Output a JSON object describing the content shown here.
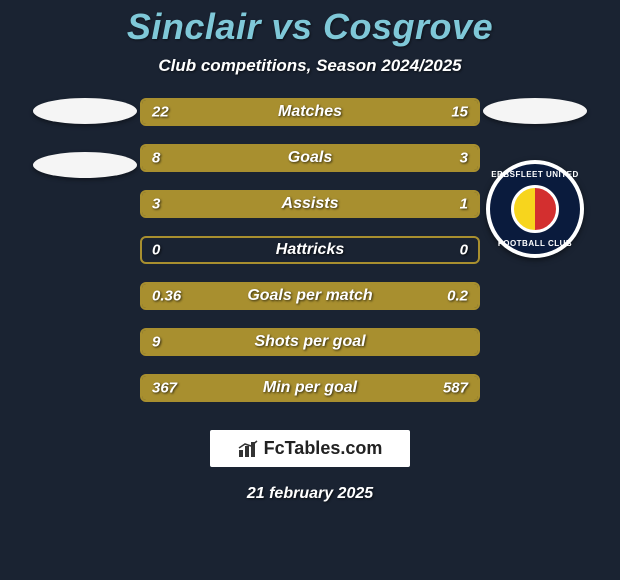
{
  "background_color": "#1a2332",
  "title": {
    "player1": "Sinclair",
    "vs": "vs",
    "player2": "Cosgrove",
    "color": "#7fc8d8",
    "fontsize": 36
  },
  "subtitle": {
    "text": "Club competitions, Season 2024/2025",
    "fontsize": 17,
    "color": "#ffffff"
  },
  "left_side": {
    "ovals": [
      {
        "color": "#f5f5f5"
      },
      {
        "color": "#f5f5f5"
      }
    ]
  },
  "right_side": {
    "oval": {
      "color": "#f5f5f5"
    },
    "club_badge": {
      "outer_bg": "#0a1b3d",
      "outer_border": "#ffffff",
      "inner_left": "#f7d51d",
      "inner_right": "#d32f2f",
      "name_top": "EBBSFLEET UNITED",
      "name_bottom": "FOOTBALL CLUB"
    }
  },
  "stats": [
    {
      "label": "Matches",
      "left_val": "22",
      "right_val": "15",
      "left_num": 22,
      "right_num": 15,
      "border_color": "#a88f2f",
      "fill_color": "#a88f2f"
    },
    {
      "label": "Goals",
      "left_val": "8",
      "right_val": "3",
      "left_num": 8,
      "right_num": 3,
      "border_color": "#a88f2f",
      "fill_color": "#a88f2f"
    },
    {
      "label": "Assists",
      "left_val": "3",
      "right_val": "1",
      "left_num": 3,
      "right_num": 1,
      "border_color": "#a88f2f",
      "fill_color": "#a88f2f"
    },
    {
      "label": "Hattricks",
      "left_val": "0",
      "right_val": "0",
      "left_num": 0,
      "right_num": 0,
      "border_color": "#a88f2f",
      "fill_color": "#a88f2f"
    },
    {
      "label": "Goals per match",
      "left_val": "0.36",
      "right_val": "0.2",
      "left_num": 0.36,
      "right_num": 0.2,
      "border_color": "#a88f2f",
      "fill_color": "#a88f2f"
    },
    {
      "label": "Shots per goal",
      "left_val": "9",
      "right_val": "",
      "left_num": 9,
      "right_num": 0,
      "border_color": "#a88f2f",
      "fill_color": "#a88f2f",
      "full_left": true
    },
    {
      "label": "Min per goal",
      "left_val": "367",
      "right_val": "587",
      "left_num": 367,
      "right_num": 587,
      "border_color": "#a88f2f",
      "fill_color": "#a88f2f",
      "left_fill_override_pct": 100,
      "right_fill_override_pct": 0
    }
  ],
  "bar_style": {
    "height": 28,
    "border_radius": 6,
    "label_fontsize": 16,
    "value_fontsize": 15,
    "text_color": "#ffffff"
  },
  "watermark": {
    "icon": "📊",
    "text": "FcTables.com",
    "bg": "#ffffff",
    "text_color": "#222222"
  },
  "date": "21 february 2025"
}
